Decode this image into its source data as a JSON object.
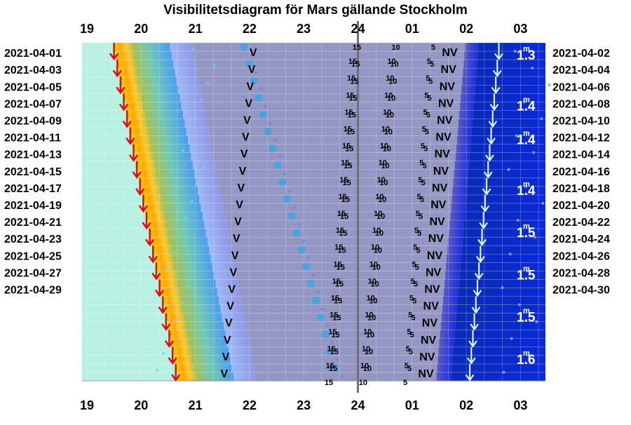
{
  "chart_data": {
    "type": "visibility-diagram",
    "title": "Visibilitetsdiagram för Mars gällande Stockholm",
    "hour_labels": [
      "19",
      "20",
      "21",
      "22",
      "23",
      "24",
      "01",
      "02",
      "03"
    ],
    "time_range_hours": [
      19,
      27.5
    ],
    "left_dates": [
      "2021-04-01",
      "2021-04-03",
      "2021-04-05",
      "2021-04-07",
      "2021-04-09",
      "2021-04-11",
      "2021-04-13",
      "2021-04-15",
      "2021-04-17",
      "2021-04-19",
      "2021-04-21",
      "2021-04-23",
      "2021-04-25",
      "2021-04-27",
      "2021-04-29"
    ],
    "right_dates": [
      "2021-04-02",
      "2021-04-04",
      "2021-04-06",
      "2021-04-08",
      "2021-04-10",
      "2021-04-12",
      "2021-04-14",
      "2021-04-16",
      "2021-04-18",
      "2021-04-20",
      "2021-04-22",
      "2021-04-24",
      "2021-04-26",
      "2021-04-28",
      "2021-04-30"
    ],
    "sunset": {
      "start": 19.5,
      "end": 20.67
    },
    "sunrise": {
      "start": 26.6,
      "end": 26.05
    },
    "visible_marker": "V",
    "not_visible_marker": "NV",
    "visible_marker_time": {
      "start": 22.0,
      "end": 21.45
    },
    "not_visible_marker_time": {
      "start": 25.55,
      "end": 25.1
    },
    "altitude_labels": [
      "15",
      "10",
      "5"
    ],
    "altitude_label_times": [
      {
        "start": 23.9,
        "end": 23.45
      },
      {
        "start": 24.62,
        "end": 24.08
      },
      {
        "start": 25.35,
        "end": 24.9
      }
    ],
    "magnitudes": [
      {
        "value": "1.3",
        "row": 0
      },
      {
        "value": "1.4",
        "row": 6
      },
      {
        "value": "1.4",
        "row": 10
      },
      {
        "value": "1.4",
        "row": 16
      },
      {
        "value": "1.5",
        "row": 21
      },
      {
        "value": "1.5",
        "row": 26
      },
      {
        "value": "1.5",
        "row": 31
      },
      {
        "value": "1.6",
        "row": 36
      }
    ],
    "magnitude_unit": "m"
  }
}
